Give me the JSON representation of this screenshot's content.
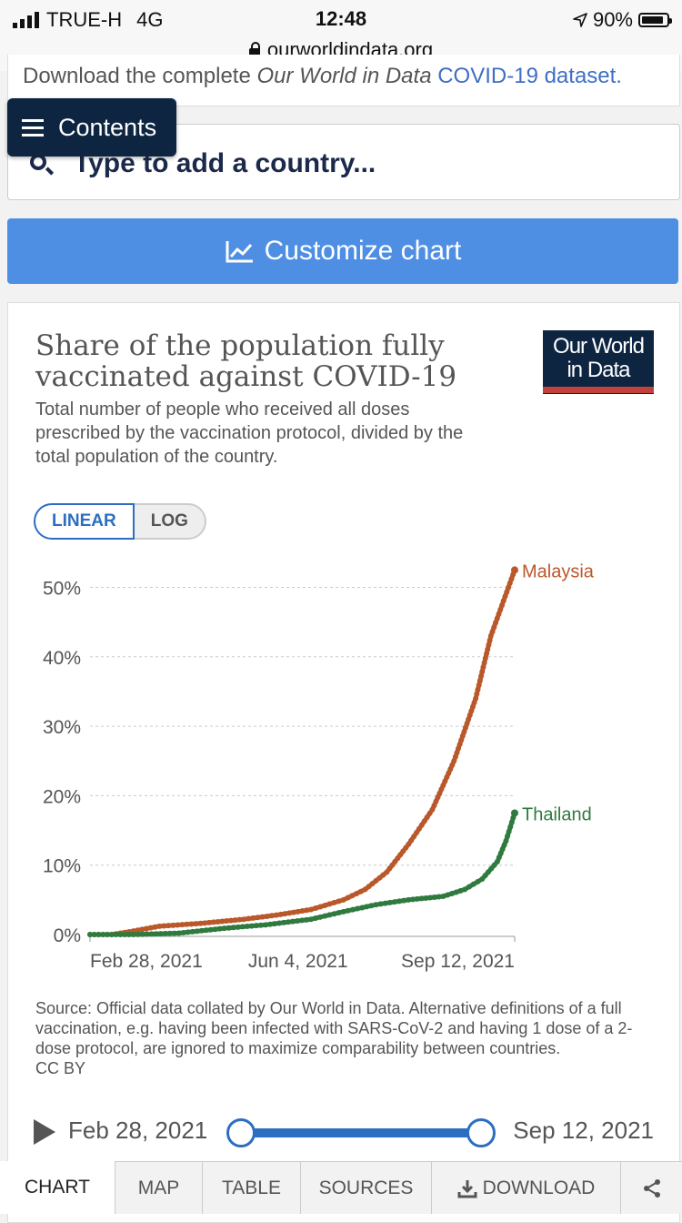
{
  "status_bar": {
    "carrier": "TRUE-H",
    "network": "4G",
    "time": "12:48",
    "url": "ourworldindata.org",
    "battery": "90%",
    "battery_level": 0.9
  },
  "top_card": {
    "prefix": "Download the complete ",
    "italic": "Our World in Data",
    "link": "COVID-19 dataset."
  },
  "contents_button": {
    "label": "Contents"
  },
  "search": {
    "placeholder": "Type to add a country..."
  },
  "customize_button": {
    "label": "Customize chart"
  },
  "chart": {
    "title": "Share of the population fully vaccinated against COVID-19",
    "subtitle": "Total number of people who received all doses prescribed by the vaccination protocol, divided by the total population of the country.",
    "logo_line1": "Our World",
    "logo_line2": "in Data",
    "scale_toggle": {
      "linear": "LINEAR",
      "log": "LOG",
      "active": "LINEAR"
    },
    "source": "Source: Official data collated by Our World in Data. Alternative definitions of a full vaccination, e.g. having been infected with SARS-CoV-2 and having 1 dose of a 2-dose protocol, are ignored to maximize comparability between countries.",
    "license": "CC BY"
  },
  "chart_data": {
    "type": "line",
    "title": "Share of the population fully vaccinated against COVID-19",
    "xlabel": "",
    "ylabel": "",
    "x_ticks": [
      "Feb 28, 2021",
      "Jun 4, 2021",
      "Sep 12, 2021"
    ],
    "y_ticks": [
      "0%",
      "10%",
      "20%",
      "30%",
      "40%",
      "50%"
    ],
    "ylim": [
      0,
      55
    ],
    "series": [
      {
        "name": "Malaysia",
        "color": "#b9582a",
        "points": [
          [
            "2021-02-28",
            0
          ],
          [
            "2021-03-10",
            0
          ],
          [
            "2021-03-20",
            0.5
          ],
          [
            "2021-04-01",
            1.2
          ],
          [
            "2021-04-20",
            1.6
          ],
          [
            "2021-05-10",
            2.2
          ],
          [
            "2021-05-25",
            2.8
          ],
          [
            "2021-06-10",
            3.6
          ],
          [
            "2021-06-25",
            5.0
          ],
          [
            "2021-07-05",
            6.5
          ],
          [
            "2021-07-15",
            9.0
          ],
          [
            "2021-07-25",
            13.0
          ],
          [
            "2021-08-05",
            18.0
          ],
          [
            "2021-08-15",
            25.0
          ],
          [
            "2021-08-25",
            34.0
          ],
          [
            "2021-09-01",
            43.0
          ],
          [
            "2021-09-12",
            52.5
          ]
        ]
      },
      {
        "name": "Thailand",
        "color": "#2f7a3e",
        "points": [
          [
            "2021-02-28",
            0
          ],
          [
            "2021-03-20",
            0
          ],
          [
            "2021-04-10",
            0.2
          ],
          [
            "2021-05-01",
            0.9
          ],
          [
            "2021-05-20",
            1.4
          ],
          [
            "2021-06-10",
            2.2
          ],
          [
            "2021-06-25",
            3.3
          ],
          [
            "2021-07-10",
            4.3
          ],
          [
            "2021-07-25",
            5.0
          ],
          [
            "2021-08-10",
            5.5
          ],
          [
            "2021-08-20",
            6.5
          ],
          [
            "2021-08-28",
            8.0
          ],
          [
            "2021-09-04",
            10.5
          ],
          [
            "2021-09-08",
            13.5
          ],
          [
            "2021-09-12",
            17.5
          ]
        ]
      }
    ],
    "grid": true,
    "legend": "right end of lines"
  },
  "timeline": {
    "start": "Feb 28, 2021",
    "end": "Sep 12, 2021",
    "range": [
      0,
      1
    ]
  },
  "tabs": [
    {
      "label": "CHART",
      "active": true
    },
    {
      "label": "MAP"
    },
    {
      "label": "TABLE"
    },
    {
      "label": "SOURCES"
    },
    {
      "label": "DOWNLOAD"
    },
    {
      "label": ""
    }
  ]
}
